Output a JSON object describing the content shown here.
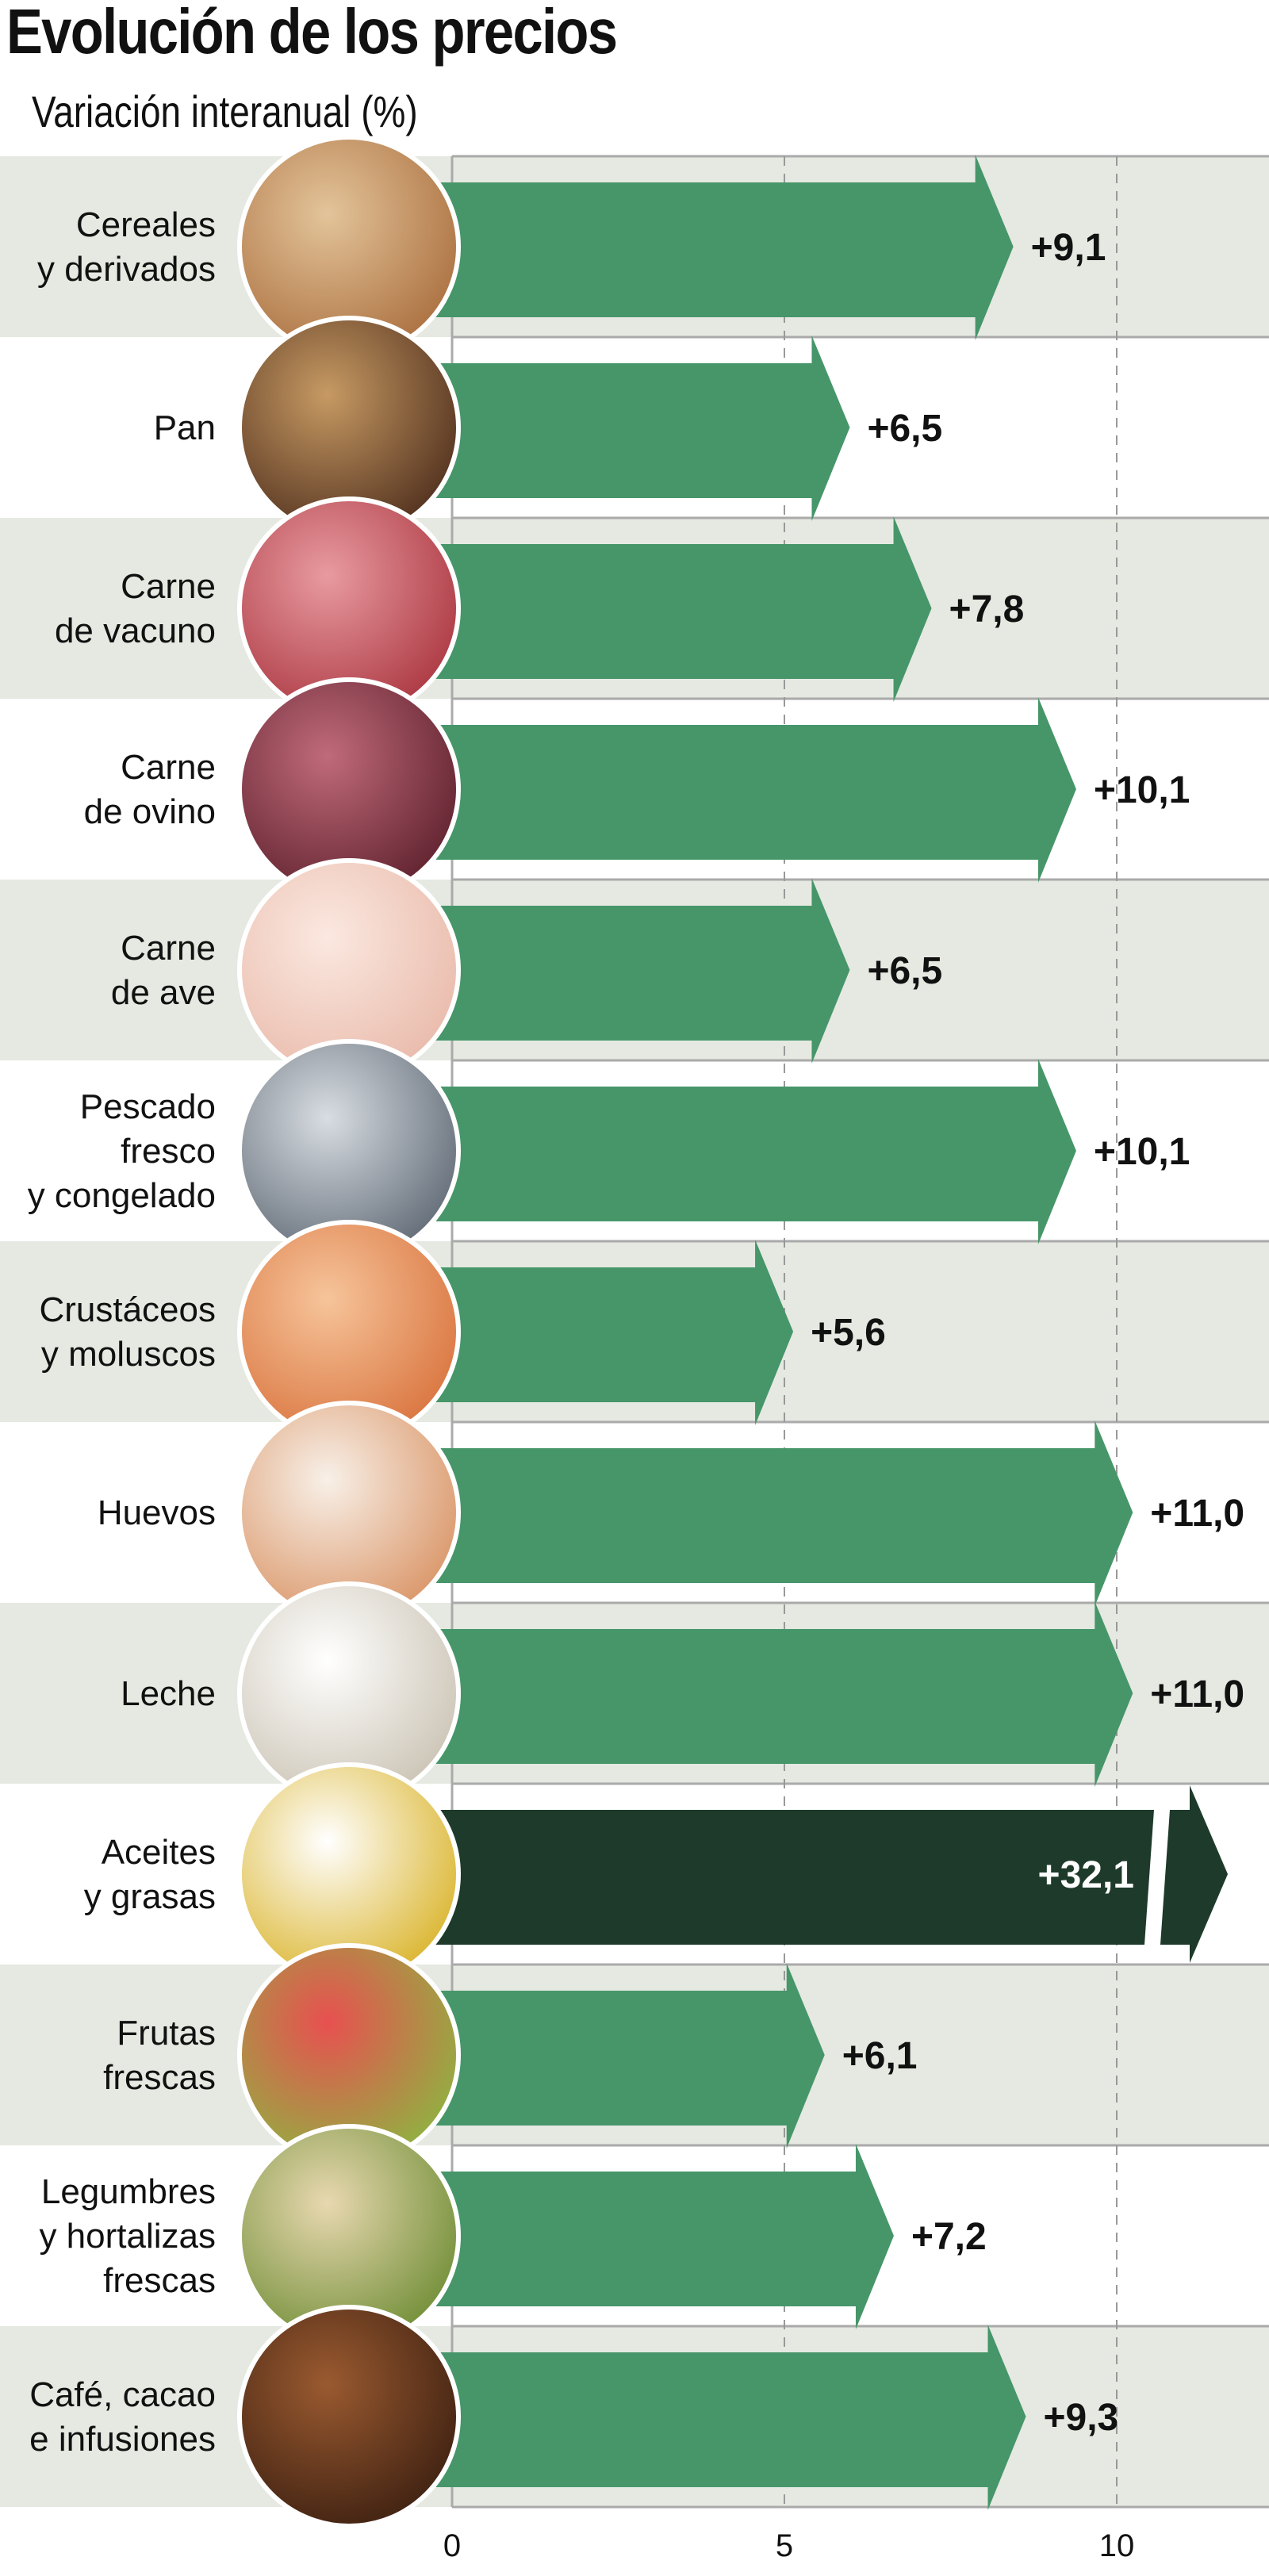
{
  "header": {
    "title": "Evolución de los precios",
    "subtitle": "Variación interanual (%)"
  },
  "colors": {
    "bar": "#46966a",
    "bar_highlight": "#1e3a2a",
    "row_shade": "#e5e9e1",
    "grid": "#aaaaaa"
  },
  "chart_data": {
    "type": "bar",
    "orientation": "horizontal",
    "title": "Evolución de los precios",
    "subtitle": "Variación interanual (%)",
    "xlim": [
      0,
      12
    ],
    "xticks": [
      "0",
      "5",
      "10"
    ],
    "grid": "vertical dashed at 5 and 10",
    "axis_break_on": "Aceites y grasas",
    "categories": [
      {
        "label": [
          "Cereales",
          "y derivados"
        ],
        "value": 9.1,
        "value_label": "+9,1",
        "icon": "cereals-photo"
      },
      {
        "label": [
          "Pan"
        ],
        "value": 6.5,
        "value_label": "+6,5",
        "icon": "bread-photo"
      },
      {
        "label": [
          "Carne",
          "de vacuno"
        ],
        "value": 7.8,
        "value_label": "+7,8",
        "icon": "beef-photo"
      },
      {
        "label": [
          "Carne",
          "de ovino"
        ],
        "value": 10.1,
        "value_label": "+10,1",
        "icon": "lamb-photo"
      },
      {
        "label": [
          "Carne",
          "de ave"
        ],
        "value": 6.5,
        "value_label": "+6,5",
        "icon": "chicken-photo"
      },
      {
        "label": [
          "Pescado",
          "fresco",
          "y congelado"
        ],
        "value": 10.1,
        "value_label": "+10,1",
        "icon": "fish-photo"
      },
      {
        "label": [
          "Crustáceos",
          "y moluscos"
        ],
        "value": 5.6,
        "value_label": "+5,6",
        "icon": "shrimp-photo"
      },
      {
        "label": [
          "Huevos"
        ],
        "value": 11.0,
        "value_label": "+11,0",
        "icon": "eggs-photo"
      },
      {
        "label": [
          "Leche"
        ],
        "value": 11.0,
        "value_label": "+11,0",
        "icon": "milk-photo"
      },
      {
        "label": [
          "Aceites",
          "y grasas"
        ],
        "value": 32.1,
        "value_label": "+32,1",
        "icon": "oil-photo",
        "highlight": true
      },
      {
        "label": [
          "Frutas",
          "frescas"
        ],
        "value": 6.1,
        "value_label": "+6,1",
        "icon": "fruit-photo"
      },
      {
        "label": [
          "Legumbres",
          "y hortalizas",
          "frescas"
        ],
        "value": 7.2,
        "value_label": "+7,2",
        "icon": "legumes-photo"
      },
      {
        "label": [
          "Café, cacao",
          "e infusiones"
        ],
        "value": 9.3,
        "value_label": "+9,3",
        "icon": "coffee-photo"
      }
    ]
  }
}
